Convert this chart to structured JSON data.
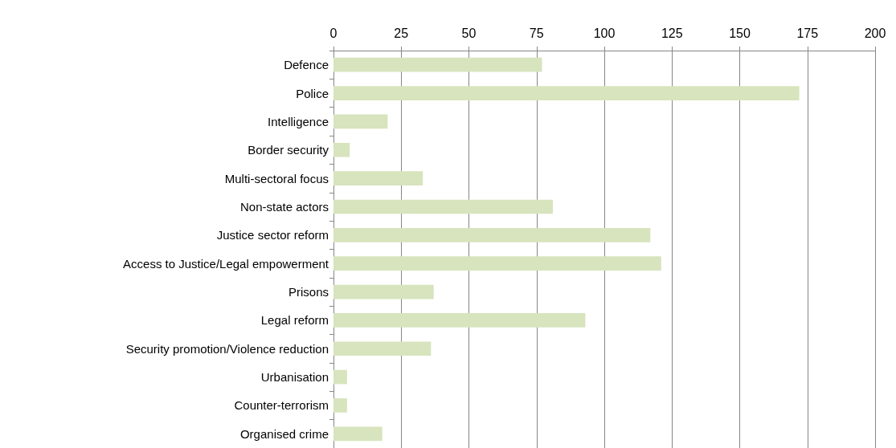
{
  "chart_data": {
    "type": "bar",
    "orientation": "horizontal",
    "categories": [
      "Defence",
      "Police",
      "Intelligence",
      "Border security",
      "Multi-sectoral focus",
      "Non-state actors",
      "Justice sector reform",
      "Access to Justice/Legal empowerment",
      "Prisons",
      "Legal reform",
      "Security promotion/Violence reduction",
      "Urbanisation",
      "Counter-terrorism",
      "Organised crime"
    ],
    "values": [
      77,
      172,
      20,
      6,
      33,
      81,
      117,
      121,
      37,
      93,
      36,
      5,
      5,
      18
    ],
    "color": "#d7e4bd",
    "xlim": [
      0,
      200
    ],
    "xticks": [
      0,
      25,
      50,
      75,
      100,
      125,
      150,
      175,
      200
    ],
    "grid": "x"
  }
}
